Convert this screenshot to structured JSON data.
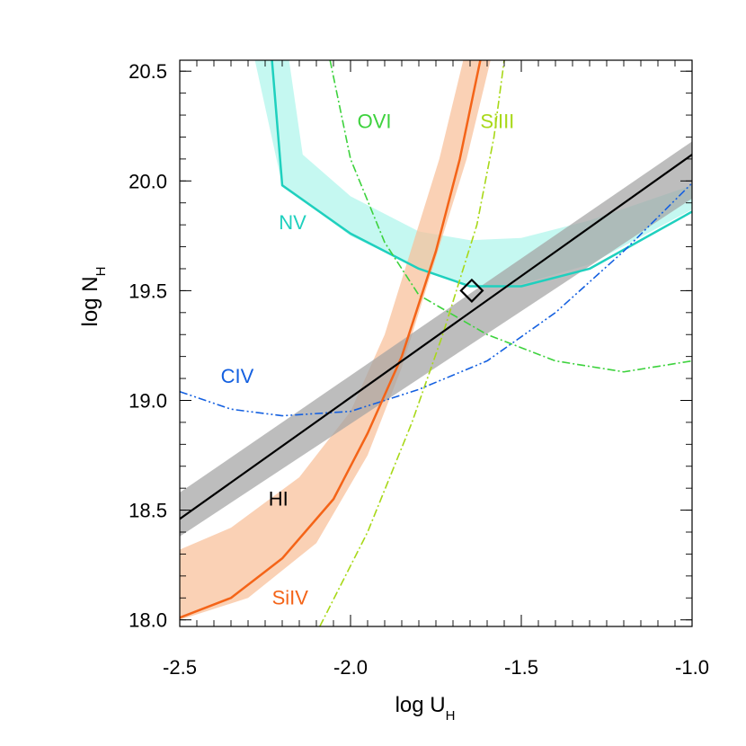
{
  "chart_data": {
    "type": "line",
    "xlabel": "log U",
    "xlabel_sub": "H",
    "ylabel": "log N",
    "ylabel_sub": "H",
    "xlim": [
      -2.5,
      -1.0
    ],
    "ylim": [
      17.97,
      20.55
    ],
    "xticks": [
      -2.5,
      -2.0,
      -1.5,
      -1.0
    ],
    "xtick_labels": [
      "-2.5",
      "-2.0",
      "-1.5",
      "-1.0"
    ],
    "yticks": [
      18.0,
      18.5,
      19.0,
      19.5,
      20.0,
      20.5
    ],
    "ytick_labels": [
      "18.0",
      "18.5",
      "19.0",
      "19.5",
      "20.0",
      "20.5"
    ],
    "bands": [
      {
        "name": "NV",
        "color": "#aef5ec",
        "lower": [
          [
            -2.28,
            20.55
          ],
          [
            -2.2,
            19.98
          ],
          [
            -2.0,
            19.75
          ],
          [
            -1.8,
            19.6
          ],
          [
            -1.65,
            19.52
          ],
          [
            -1.5,
            19.53
          ],
          [
            -1.3,
            19.62
          ],
          [
            -1.0,
            19.87
          ]
        ],
        "upper": [
          [
            -2.18,
            20.55
          ],
          [
            -2.14,
            20.12
          ],
          [
            -2.0,
            19.93
          ],
          [
            -1.8,
            19.77
          ],
          [
            -1.65,
            19.73
          ],
          [
            -1.5,
            19.74
          ],
          [
            -1.3,
            19.82
          ],
          [
            -1.0,
            19.98
          ]
        ]
      },
      {
        "name": "SiIV",
        "color": "#f8bf98",
        "lower": [
          [
            -2.5,
            18.0
          ],
          [
            -2.3,
            18.1
          ],
          [
            -2.1,
            18.35
          ],
          [
            -1.95,
            18.75
          ],
          [
            -1.85,
            19.15
          ],
          [
            -1.75,
            19.65
          ],
          [
            -1.66,
            20.1
          ],
          [
            -1.59,
            20.55
          ]
        ],
        "upper": [
          [
            -2.5,
            18.32
          ],
          [
            -2.35,
            18.42
          ],
          [
            -2.15,
            18.65
          ],
          [
            -2.0,
            18.95
          ],
          [
            -1.9,
            19.3
          ],
          [
            -1.82,
            19.7
          ],
          [
            -1.74,
            20.1
          ],
          [
            -1.67,
            20.55
          ]
        ]
      },
      {
        "name": "HI",
        "color": "#a3a3a3",
        "lower": [
          [
            -2.5,
            18.38
          ],
          [
            -1.0,
            19.92
          ]
        ],
        "upper": [
          [
            -2.5,
            18.58
          ],
          [
            -1.0,
            20.18
          ]
        ]
      }
    ],
    "series": [
      {
        "name": "NV",
        "color": "#1fd0be",
        "style": "solid",
        "width": 2.5,
        "points": [
          [
            -2.23,
            20.55
          ],
          [
            -2.2,
            19.98
          ],
          [
            -2.0,
            19.76
          ],
          [
            -1.8,
            19.6
          ],
          [
            -1.65,
            19.52
          ],
          [
            -1.5,
            19.52
          ],
          [
            -1.3,
            19.6
          ],
          [
            -1.0,
            19.86
          ]
        ]
      },
      {
        "name": "OVI",
        "color": "#3dd23d",
        "style": "dashdot",
        "width": 1.6,
        "points": [
          [
            -2.06,
            20.55
          ],
          [
            -2.0,
            20.1
          ],
          [
            -1.9,
            19.72
          ],
          [
            -1.8,
            19.48
          ],
          [
            -1.6,
            19.3
          ],
          [
            -1.4,
            19.18
          ],
          [
            -1.2,
            19.13
          ],
          [
            -1.0,
            19.18
          ]
        ]
      },
      {
        "name": "SiIII",
        "color": "#a8d818",
        "style": "dashdot",
        "width": 1.6,
        "points": [
          [
            -2.09,
            17.97
          ],
          [
            -1.95,
            18.4
          ],
          [
            -1.82,
            18.9
          ],
          [
            -1.73,
            19.3
          ],
          [
            -1.63,
            19.8
          ],
          [
            -1.58,
            20.2
          ],
          [
            -1.55,
            20.55
          ]
        ]
      },
      {
        "name": "CIV",
        "color": "#1460e0",
        "style": "dashdotdot",
        "width": 1.6,
        "points": [
          [
            -2.5,
            19.04
          ],
          [
            -2.35,
            18.96
          ],
          [
            -2.2,
            18.93
          ],
          [
            -2.0,
            18.95
          ],
          [
            -1.8,
            19.05
          ],
          [
            -1.6,
            19.18
          ],
          [
            -1.4,
            19.4
          ],
          [
            -1.2,
            19.68
          ],
          [
            -1.0,
            19.99
          ]
        ]
      },
      {
        "name": "SiIV",
        "color": "#f46418",
        "style": "solid",
        "width": 2.5,
        "points": [
          [
            -2.5,
            18.01
          ],
          [
            -2.35,
            18.1
          ],
          [
            -2.2,
            18.28
          ],
          [
            -2.05,
            18.55
          ],
          [
            -1.95,
            18.85
          ],
          [
            -1.85,
            19.2
          ],
          [
            -1.75,
            19.68
          ],
          [
            -1.68,
            20.1
          ],
          [
            -1.62,
            20.55
          ]
        ]
      },
      {
        "name": "HI",
        "color": "#000000",
        "style": "solid",
        "width": 2.2,
        "points": [
          [
            -2.5,
            18.46
          ],
          [
            -1.0,
            20.12
          ]
        ]
      }
    ],
    "annotations": [
      {
        "text": "OVI",
        "x": -1.98,
        "y": 20.24,
        "color": "#3dd23d"
      },
      {
        "text": "SiIII",
        "x": -1.62,
        "y": 20.24,
        "color": "#a8d818"
      },
      {
        "text": "NV",
        "x": -2.21,
        "y": 19.78,
        "color": "#1fd0be"
      },
      {
        "text": "CIV",
        "x": -2.38,
        "y": 19.08,
        "color": "#1460e0"
      },
      {
        "text": "HI",
        "x": -2.24,
        "y": 18.52,
        "color": "#000000"
      },
      {
        "text": "SiIV",
        "x": -2.23,
        "y": 18.07,
        "color": "#f46418"
      }
    ],
    "marker": {
      "shape": "diamond",
      "x": -1.645,
      "y": 19.5,
      "color": "#000000"
    }
  }
}
